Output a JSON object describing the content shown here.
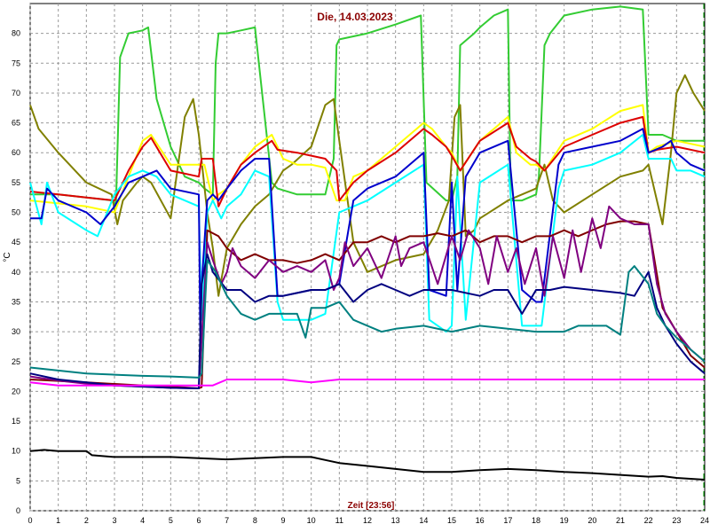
{
  "chart_data": {
    "type": "line",
    "title": "Die, 14.03.2023",
    "xlabel": "Zeit [23:56]",
    "ylabel": "°C",
    "xlim": [
      0,
      24
    ],
    "ylim": [
      0,
      85
    ],
    "x_ticks": [
      0,
      1,
      2,
      3,
      4,
      5,
      6,
      7,
      8,
      9,
      10,
      11,
      12,
      13,
      14,
      15,
      16,
      17,
      18,
      19,
      20,
      21,
      22,
      23,
      24
    ],
    "y_ticks": [
      0,
      5,
      10,
      15,
      20,
      25,
      30,
      35,
      40,
      45,
      50,
      55,
      60,
      65,
      70,
      75,
      80
    ],
    "grid": true,
    "end_marker_x": 24,
    "colors": {
      "title": "#8b0000",
      "grid": "#999999",
      "end_marker": "#00a000"
    },
    "series": [
      {
        "color": "#33cc33",
        "x": [
          0,
          1,
          2,
          2.95,
          3.05,
          3.2,
          3.5,
          4,
          4.2,
          4.5,
          5,
          5.5,
          6,
          6.2,
          6.5,
          6.6,
          6.7,
          6.8,
          7,
          7.5,
          8,
          8.6,
          8.8,
          9.5,
          10,
          10.5,
          10.8,
          10.9,
          11,
          11.5,
          12,
          13,
          13.9,
          14.1,
          14.8,
          15,
          15.2,
          15.3,
          15.8,
          16,
          16.5,
          17,
          17.1,
          17.5,
          18,
          18.1,
          18.3,
          18.5,
          19,
          20,
          21,
          21.8,
          22,
          22.5,
          23,
          23.5,
          24
        ],
        "y": [
          53,
          53,
          52.5,
          52,
          51,
          76,
          80,
          80.5,
          81,
          69,
          61,
          56,
          55,
          54,
          53,
          75,
          80,
          80,
          80,
          80.5,
          81,
          55,
          54,
          53,
          53,
          53,
          59,
          78,
          79,
          79.5,
          80,
          81.5,
          83,
          55,
          52,
          52,
          56,
          78,
          80,
          81,
          83,
          84,
          52,
          52,
          53,
          56,
          78,
          80,
          83,
          84,
          84.5,
          84,
          63,
          63,
          62,
          62,
          62
        ]
      },
      {
        "color": "#808000",
        "x": [
          0,
          0.3,
          1,
          2,
          2.9,
          3.1,
          3.3,
          3.8,
          4,
          4.3,
          5,
          5.5,
          5.8,
          6,
          6.3,
          6.5,
          6.7,
          7,
          7.5,
          8,
          8.5,
          9,
          9.3,
          10,
          10.5,
          10.8,
          11,
          11.5,
          12,
          13,
          14,
          14.5,
          14.9,
          15.1,
          15.3,
          15.5,
          15.8,
          16,
          17,
          18,
          18.3,
          18.6,
          19,
          20,
          21,
          21.8,
          22,
          22.5,
          22.8,
          23,
          23.3,
          23.6,
          24
        ],
        "y": [
          68,
          64,
          60,
          55,
          53,
          48,
          52,
          55,
          56,
          55,
          49,
          66,
          69,
          63,
          50,
          44,
          36,
          44,
          48,
          51,
          53,
          57,
          58,
          61,
          68,
          69,
          62,
          45,
          40,
          42,
          43,
          47,
          52,
          66,
          68,
          46,
          47,
          49,
          52,
          54,
          58,
          52,
          50,
          53,
          56,
          57,
          58,
          48,
          60,
          70,
          73,
          70,
          67
        ]
      },
      {
        "color": "#ffff00",
        "x": [
          0,
          1,
          2,
          3,
          3.5,
          4,
          4.3,
          5,
          6,
          6.2,
          6.5,
          6.7,
          7,
          7.5,
          8,
          8.6,
          9,
          9.5,
          10,
          10.5,
          10.9,
          11.2,
          11.5,
          12,
          13,
          14,
          14.3,
          14.8,
          15,
          15.3,
          16,
          17,
          17.3,
          17.8,
          18,
          18.3,
          19,
          20,
          21,
          21.8,
          22,
          22.3,
          23,
          24
        ],
        "y": [
          52,
          51.5,
          51,
          50,
          56,
          62,
          63,
          58,
          58,
          58,
          52,
          53,
          54,
          58,
          61,
          63,
          59,
          58,
          58,
          57.5,
          52,
          52,
          56,
          57,
          61,
          65,
          64,
          61,
          60,
          57,
          62,
          66,
          60,
          58,
          58,
          57,
          62,
          64,
          67,
          68,
          60,
          61,
          62,
          61
        ]
      },
      {
        "color": "#dd0000",
        "x": [
          0,
          1,
          2,
          3,
          3.5,
          4,
          4.3,
          5,
          6,
          6.1,
          6.5,
          6.7,
          7,
          7.5,
          8,
          8.6,
          8.8,
          9.5,
          10,
          10.5,
          10.9,
          11,
          11.5,
          12,
          13,
          14,
          14.3,
          14.8,
          15,
          15.3,
          16,
          17,
          17.3,
          17.8,
          18,
          18.3,
          19,
          20,
          21,
          21.8,
          22,
          22.3,
          23,
          24
        ],
        "y": [
          53.5,
          53,
          52.5,
          52,
          57,
          61,
          62.5,
          57,
          56,
          59,
          59,
          51,
          54,
          58,
          60,
          62,
          60.5,
          60,
          59.5,
          59,
          57,
          52,
          55,
          57,
          60,
          64,
          63,
          61,
          59.5,
          57,
          62,
          65,
          61,
          59,
          58.5,
          57,
          61,
          63,
          65,
          66,
          60,
          60.5,
          61,
          60
        ]
      },
      {
        "color": "#00ffff",
        "x": [
          0,
          0.4,
          0.6,
          1,
          2,
          2.4,
          3,
          3.5,
          4,
          4.5,
          5,
          6,
          6.1,
          6.3,
          6.5,
          6.8,
          7,
          7.5,
          8,
          8.5,
          8.8,
          9,
          10,
          10.5,
          11,
          11.5,
          12,
          13,
          14,
          14.2,
          14.8,
          15,
          15.2,
          15.5,
          16,
          17,
          17.5,
          18,
          18.2,
          18.8,
          19,
          20,
          21,
          21.8,
          22,
          22.5,
          22.8,
          23,
          23.5,
          24
        ],
        "y": [
          55,
          48,
          55,
          50,
          47,
          46,
          53,
          56,
          57,
          56,
          53,
          51,
          32,
          50,
          52,
          49,
          51,
          53,
          57,
          56,
          35,
          32,
          32,
          33,
          50,
          51,
          52,
          55,
          58,
          32,
          30,
          31,
          56,
          32,
          55,
          58,
          31,
          31,
          31,
          54,
          57,
          58,
          60,
          63,
          59,
          59,
          59,
          57,
          57,
          56
        ]
      },
      {
        "color": "#0000cc",
        "x": [
          0,
          0.4,
          0.6,
          1,
          2,
          2.5,
          3,
          3.5,
          4,
          4.5,
          5,
          6,
          6.05,
          6.1,
          6.3,
          6.5,
          6.7,
          7,
          7.5,
          8,
          8.5,
          8.8,
          9,
          10,
          10.5,
          11,
          11.5,
          12,
          13,
          14,
          14.2,
          14.8,
          15,
          15.2,
          15.5,
          16,
          17,
          17.5,
          18,
          18.2,
          18.8,
          19,
          20,
          21,
          21.8,
          22,
          22.5,
          22.8,
          23,
          23.5,
          24
        ],
        "y": [
          49,
          49,
          54,
          52,
          50,
          48,
          51,
          55,
          56,
          57,
          54,
          53,
          30,
          38,
          52,
          53,
          52,
          54,
          57,
          59,
          59,
          36,
          36,
          37,
          37,
          38,
          52,
          54,
          56,
          60,
          37,
          36,
          55,
          37,
          56,
          60,
          62,
          37,
          35,
          35,
          58,
          60,
          61,
          62,
          64,
          60,
          61,
          62,
          60,
          58,
          57
        ]
      },
      {
        "color": "#800000",
        "x": [
          0,
          2,
          4,
          5,
          6,
          6.1,
          6.3,
          6.7,
          7,
          7.5,
          8,
          8.5,
          9,
          9.5,
          10,
          10.5,
          11,
          11.5,
          12,
          12.5,
          13,
          13.5,
          14,
          14.5,
          15,
          15.5,
          16,
          16.5,
          17,
          17.5,
          18,
          18.5,
          19,
          19.5,
          20,
          20.5,
          21,
          21.5,
          22,
          22.5,
          23,
          23.5,
          24
        ],
        "y": [
          22,
          21.5,
          21,
          20.8,
          20.5,
          20.7,
          47,
          46,
          44,
          42,
          43,
          42,
          42,
          41.5,
          42,
          43,
          42,
          45,
          45,
          46,
          45,
          46,
          46,
          46.5,
          46,
          47,
          45,
          46,
          46,
          45,
          46,
          46,
          47,
          46,
          47,
          48,
          48.5,
          48.5,
          48,
          34,
          30,
          26,
          24
        ]
      },
      {
        "color": "#800080",
        "x": [
          0,
          1,
          2,
          3,
          4,
          5,
          6,
          6.3,
          6.5,
          6.8,
          7,
          7.2,
          7.5,
          8,
          8.5,
          9,
          9.5,
          10,
          10.5,
          10.8,
          11,
          11.2,
          11.5,
          12,
          12.5,
          13,
          13.2,
          13.5,
          14,
          14.5,
          15,
          15.3,
          15.6,
          16,
          16.3,
          16.6,
          17,
          17.3,
          17.6,
          18,
          18.3,
          18.6,
          19,
          19.3,
          19.6,
          20,
          20.3,
          20.6,
          21,
          21.5,
          22,
          22.3,
          22.6,
          23,
          23.5,
          24
        ],
        "y": [
          22.5,
          21.8,
          21.3,
          21,
          20.8,
          20.6,
          20.5,
          45,
          42,
          38,
          40,
          44,
          41,
          39,
          42,
          40,
          41,
          40,
          42,
          37,
          39,
          45,
          41,
          44,
          39,
          46,
          41,
          44,
          45,
          38,
          46,
          42,
          47,
          44,
          38,
          46,
          40,
          44,
          38,
          44,
          36,
          46,
          39,
          47,
          40,
          49,
          44,
          51,
          49,
          48,
          48,
          38,
          33,
          30,
          27,
          25
        ]
      },
      {
        "color": "#000080",
        "x": [
          0,
          1,
          2,
          3,
          4,
          5,
          6,
          6.1,
          6.3,
          6.5,
          7,
          7.5,
          8,
          8.5,
          9,
          9.5,
          10,
          10.5,
          11,
          11.5,
          12,
          12.5,
          13,
          13.5,
          14,
          15,
          16,
          16.5,
          17,
          17.5,
          18,
          18.5,
          19,
          20,
          21,
          21.5,
          22,
          22.3,
          22.6,
          23,
          23.5,
          24
        ],
        "y": [
          23,
          22,
          21.5,
          21,
          20.8,
          20.6,
          20.5,
          38,
          43,
          40,
          37,
          37,
          35,
          36,
          36,
          36.5,
          37,
          37,
          38,
          35,
          37,
          38,
          37,
          36,
          37,
          37,
          36,
          37,
          37,
          33,
          37,
          37,
          37.5,
          37,
          36.5,
          36,
          40,
          34,
          31,
          28,
          25,
          23
        ]
      },
      {
        "color": "#008080",
        "x": [
          0,
          1,
          2,
          3,
          4,
          5,
          6,
          6.1,
          6.3,
          6.6,
          7,
          7.5,
          8,
          8.5,
          9,
          9.5,
          9.8,
          10,
          10.5,
          11,
          11.5,
          12,
          12.5,
          13,
          14,
          15,
          16,
          17,
          18,
          19,
          19.5,
          20,
          20.5,
          21,
          21.3,
          21.5,
          22,
          22.3,
          22.6,
          23,
          23.5,
          24
        ],
        "y": [
          24,
          23.5,
          23,
          22.8,
          22.6,
          22.5,
          22.3,
          23,
          42,
          40,
          36,
          33,
          32,
          33,
          33,
          33,
          29,
          34,
          34,
          35,
          32,
          31,
          30,
          30.5,
          31,
          30,
          31,
          30.5,
          30,
          30,
          31,
          31,
          31,
          29.5,
          40,
          41,
          38,
          33,
          31,
          29,
          27,
          25
        ]
      },
      {
        "color": "#ff00ff",
        "x": [
          0,
          1,
          2,
          3,
          4,
          5,
          6,
          6.5,
          7,
          8,
          9,
          10,
          11,
          12,
          13,
          14,
          15,
          16,
          17,
          18,
          19,
          20,
          21,
          22,
          23,
          24
        ],
        "y": [
          21.5,
          21,
          21,
          21,
          21,
          21,
          21,
          21,
          22,
          22,
          22,
          21.5,
          22,
          22,
          22,
          22,
          22,
          22,
          22,
          22,
          22,
          22,
          22,
          22,
          22,
          22
        ]
      },
      {
        "color": "#000000",
        "x": [
          0,
          0.5,
          1,
          1.5,
          2,
          2.2,
          3,
          4,
          5,
          6,
          7,
          8,
          9,
          10,
          10.5,
          11,
          12,
          13,
          14,
          15,
          16,
          17,
          18,
          19,
          20,
          21,
          22,
          22.5,
          23,
          24
        ],
        "y": [
          10,
          10.2,
          10,
          10,
          10,
          9.3,
          9,
          9,
          9,
          8.8,
          8.6,
          8.8,
          9,
          9,
          8.5,
          8,
          7.5,
          7,
          6.5,
          6.5,
          6.8,
          7,
          6.8,
          6.5,
          6.3,
          6,
          5.7,
          5.8,
          5.5,
          5.2
        ]
      }
    ]
  }
}
